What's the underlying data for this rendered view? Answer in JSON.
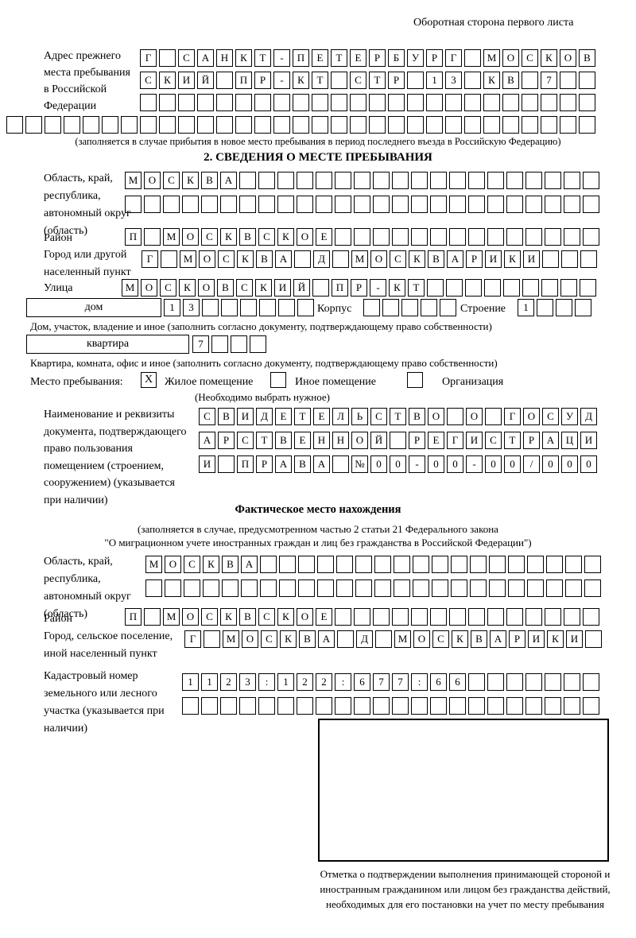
{
  "header": {
    "note": "Оборотная сторона первого листа"
  },
  "prev_address": {
    "label": "Адрес прежнего места пребывания в Российской Федерации",
    "rows": [
      "Г САНКТ-ПЕТЕРБУРГ МОСКОВ",
      "СКИЙ ПР-КТ СТР 13 КВ 7  ",
      "                        ",
      "                               "
    ],
    "note": "(заполняется в случае прибытия в новое место пребывания в период последнего въезда в Российскую Федерацию)"
  },
  "section2": {
    "title": "2. СВЕДЕНИЯ О МЕСТЕ ПРЕБЫВАНИЯ",
    "oblast": {
      "label": "Область, край, республика, автономный округ (область)",
      "rows": [
        "МОСКВА                   ",
        "                         "
      ]
    },
    "raion": {
      "label": "Район",
      "cells": "П МОСКВСКОЕ              "
    },
    "gorod": {
      "label": "Город или другой населенный пункт",
      "cells": "Г МОСКВА Д МОСКВАРИКИ   "
    },
    "ulitsa": {
      "label": "Улица",
      "cells": "МОСКОВСКИЙ ПР-КТ         "
    },
    "dom": {
      "box_label": "дом",
      "cells": "13      ",
      "korpus_label": "Корпус",
      "korpus_cells": "     ",
      "stroenie_label": "Строение",
      "stroenie_cells": "1   ",
      "caption": "Дом, участок, владение и иное (заполнить согласно документу, подтверждающему право собственности)"
    },
    "kvartira": {
      "box_label": "квартира",
      "cells": "7   ",
      "caption": "Квартира, комната, офис и иное (заполнить согласно документу, подтверждающему право собственности)"
    },
    "mesto": {
      "label": "Место пребывания:",
      "options": [
        {
          "label": "Жилое помещение",
          "checked": "Х"
        },
        {
          "label": "Иное помещение",
          "checked": ""
        },
        {
          "label": "Организация",
          "checked": ""
        }
      ],
      "note": "(Необходимо выбрать нужное)"
    },
    "doc": {
      "label": "Наименование и реквизиты документа, подтверждающего право пользования помещением (строением, сооружением) (указывается при наличии)",
      "rows": [
        "СВИДЕТЕЛЬСТВО О ГОСУД",
        "АРСТВЕННОЙ РЕГИСТРАЦИ",
        "И ПРАВА №00-00-00/000"
      ]
    }
  },
  "fact": {
    "title": "Фактическое место нахождения",
    "note1": "(заполняется в случае, предусмотренном частью 2 статьи 21 Федерального закона",
    "note2": "\"О миграционном учете иностранных граждан и лиц без гражданства в Российской Федерации\")",
    "oblast": {
      "label": "Область, край, республика, автономный округ (область)",
      "rows": [
        "МОСКВА                  ",
        "                        "
      ]
    },
    "raion": {
      "label": "Район",
      "cells": "П МОСКВСКОЕ              "
    },
    "gorod": {
      "label": "Город, сельское поселение, иной населенный пункт",
      "cells": "Г МОСКВА Д МОСКВАРИКИ "
    },
    "kadastr": {
      "label": "Кадастровый номер земельного или лесного участка (указывается при наличии)",
      "rows": [
        "1123:122:677:66       ",
        "                      "
      ]
    },
    "stamp_caption": "Отметка о подтверждении выполнения принимающей стороной и иностранным гражданином или лицом без гражданства действий, необходимых для его постановки на учет по месту пребывания"
  }
}
